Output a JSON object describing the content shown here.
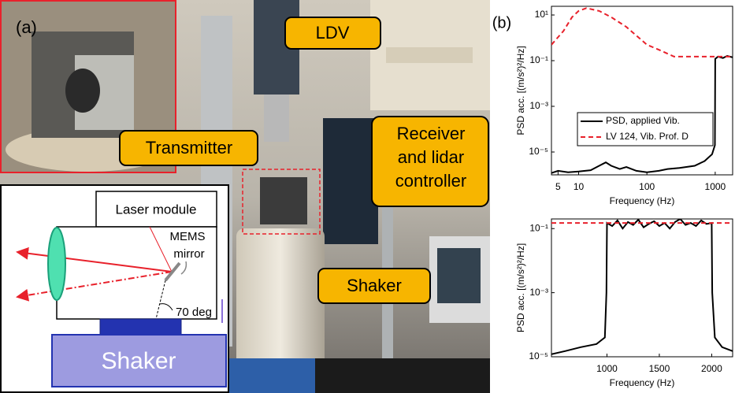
{
  "panel_a": {
    "label": "(a)",
    "callouts": {
      "ldv": "LDV",
      "transmitter": "Transmitter",
      "receiver": [
        "Receiver",
        "and lidar",
        "controller"
      ],
      "shaker": "Shaker"
    },
    "diagram": {
      "laser_module": "Laser module",
      "mems": [
        "MEMS",
        "mirror"
      ],
      "angle": "70 deg",
      "shaker": "Shaker"
    }
  },
  "panel_b_label": "(b)",
  "chart_data": [
    {
      "type": "line",
      "xscale": "log",
      "yscale": "log",
      "xlabel": "Frequency (Hz)",
      "ylabel": "PSD acc. [(m/s²)²/Hz]",
      "xlim": [
        4,
        1800
      ],
      "ylim": [
        1e-06,
        24
      ],
      "xticks": [
        5,
        10,
        100,
        1000
      ],
      "yticks": [
        {
          "value": 10,
          "label": "10¹"
        },
        {
          "value": 0.1,
          "label": "10⁻¹"
        },
        {
          "value": 0.001,
          "label": "10⁻³"
        },
        {
          "value": 1e-05,
          "label": "10⁻⁵"
        }
      ],
      "legend": "center left",
      "series": [
        {
          "name": "PSD, applied Vib.",
          "color": "#000000",
          "linestyle": "solid",
          "x": [
            4,
            5,
            7,
            10,
            15,
            20,
            25,
            30,
            40,
            50,
            70,
            100,
            150,
            200,
            300,
            500,
            700,
            900,
            990,
            1000,
            1100,
            1300,
            1500,
            1800
          ],
          "values": [
            1.2e-06,
            1.5e-06,
            1.3e-06,
            1.4e-06,
            1.6e-06,
            2.5e-06,
            3.5e-06,
            2.5e-06,
            1.8e-06,
            2.2e-06,
            1.5e-06,
            1.3e-06,
            1.5e-06,
            1.8e-06,
            2e-06,
            2.5e-06,
            4e-06,
            8e-06,
            2e-05,
            0.12,
            0.15,
            0.13,
            0.16,
            0.14
          ]
        },
        {
          "name": "LV 124, Vib. Prof. D",
          "color": "#e8212b",
          "linestyle": "dashed",
          "x": [
            4,
            6,
            8,
            10,
            13,
            20,
            30,
            50,
            100,
            150,
            250,
            300,
            1000,
            1800
          ],
          "values": [
            0.5,
            2,
            8,
            15,
            20,
            15,
            8,
            3,
            0.5,
            0.3,
            0.15,
            0.15,
            0.15,
            0.15
          ]
        }
      ]
    },
    {
      "type": "line",
      "xscale": "linear",
      "yscale": "log",
      "xlabel": "Frequency (Hz)",
      "ylabel": "PSD acc. [(m/s²)²/Hz]",
      "xlim": [
        470,
        2200
      ],
      "ylim": [
        1e-05,
        0.2
      ],
      "xticks": [
        1000,
        1500,
        2000
      ],
      "yticks": [
        {
          "value": 0.1,
          "label": "10⁻¹"
        },
        {
          "value": 0.001,
          "label": "10⁻³"
        },
        {
          "value": 1e-05,
          "label": "10⁻⁵"
        }
      ],
      "series": [
        {
          "color": "#000000",
          "linestyle": "solid",
          "x": [
            470,
            600,
            750,
            900,
            980,
            995,
            1000,
            1050,
            1100,
            1150,
            1200,
            1250,
            1300,
            1350,
            1400,
            1450,
            1500,
            1550,
            1600,
            1650,
            1700,
            1750,
            1800,
            1850,
            1900,
            1950,
            2000,
            2005,
            2030,
            2100,
            2200
          ],
          "values": [
            1.2e-05,
            1.5e-05,
            2e-05,
            2.5e-05,
            4e-05,
            0.001,
            0.15,
            0.12,
            0.18,
            0.1,
            0.16,
            0.13,
            0.19,
            0.11,
            0.14,
            0.17,
            0.12,
            0.15,
            0.1,
            0.16,
            0.2,
            0.13,
            0.15,
            0.12,
            0.18,
            0.14,
            0.15,
            0.001,
            4e-05,
            2e-05,
            1.5e-05
          ]
        },
        {
          "color": "#e8212b",
          "linestyle": "dashed",
          "x": [
            470,
            2200
          ],
          "values": [
            0.15,
            0.15
          ]
        }
      ]
    }
  ]
}
